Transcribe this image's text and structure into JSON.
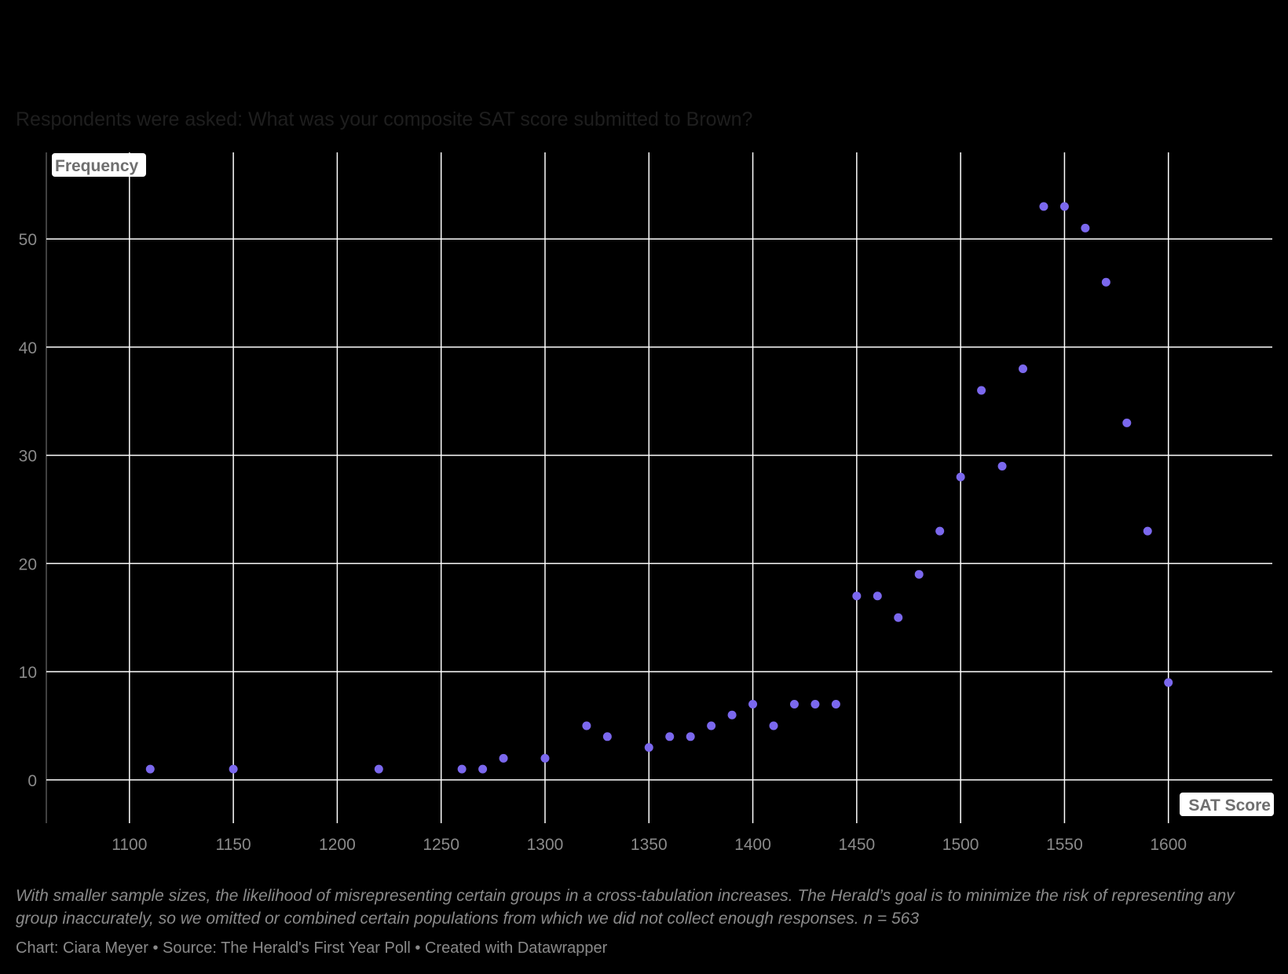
{
  "subtitle": "Respondents were asked: What was your composite SAT score submitted to Brown?",
  "note": "With smaller sample sizes, the likelihood of misrepresenting certain groups in a cross-tabulation increases. The Herald’s goal is to minimize the risk of representing any group inaccurately, so we omitted or combined certain populations from which we did not collect enough responses. n = 563",
  "credit": "Chart: Ciara Meyer • Source: The Herald's First Year Poll • Created with Datawrapper",
  "colors": {
    "background": "#000000",
    "grid": "#ffffff",
    "point": "#7b68ee",
    "text": "#8a8a8a"
  },
  "chart_data": {
    "type": "scatter",
    "title": "",
    "xlabel": "SAT Score",
    "ylabel": "Frequency",
    "xlim": [
      1060,
      1650
    ],
    "ylim": [
      -4,
      58
    ],
    "xticks": [
      1100,
      1150,
      1200,
      1250,
      1300,
      1350,
      1400,
      1450,
      1500,
      1550,
      1600
    ],
    "yticks": [
      0,
      10,
      20,
      30,
      40,
      50
    ],
    "grid": true,
    "legend": "none",
    "points": [
      {
        "x": 1110,
        "y": 1
      },
      {
        "x": 1150,
        "y": 1
      },
      {
        "x": 1220,
        "y": 1
      },
      {
        "x": 1260,
        "y": 1
      },
      {
        "x": 1270,
        "y": 1
      },
      {
        "x": 1280,
        "y": 2
      },
      {
        "x": 1300,
        "y": 2
      },
      {
        "x": 1320,
        "y": 5
      },
      {
        "x": 1330,
        "y": 4
      },
      {
        "x": 1350,
        "y": 3
      },
      {
        "x": 1360,
        "y": 4
      },
      {
        "x": 1370,
        "y": 4
      },
      {
        "x": 1380,
        "y": 5
      },
      {
        "x": 1390,
        "y": 6
      },
      {
        "x": 1400,
        "y": 7
      },
      {
        "x": 1410,
        "y": 5
      },
      {
        "x": 1420,
        "y": 7
      },
      {
        "x": 1430,
        "y": 7
      },
      {
        "x": 1440,
        "y": 7
      },
      {
        "x": 1450,
        "y": 17
      },
      {
        "x": 1460,
        "y": 17
      },
      {
        "x": 1470,
        "y": 15
      },
      {
        "x": 1480,
        "y": 19
      },
      {
        "x": 1490,
        "y": 23
      },
      {
        "x": 1500,
        "y": 28
      },
      {
        "x": 1510,
        "y": 36
      },
      {
        "x": 1520,
        "y": 29
      },
      {
        "x": 1530,
        "y": 38
      },
      {
        "x": 1540,
        "y": 53
      },
      {
        "x": 1550,
        "y": 53
      },
      {
        "x": 1560,
        "y": 51
      },
      {
        "x": 1570,
        "y": 46
      },
      {
        "x": 1580,
        "y": 33
      },
      {
        "x": 1590,
        "y": 23
      },
      {
        "x": 1600,
        "y": 9
      }
    ]
  }
}
